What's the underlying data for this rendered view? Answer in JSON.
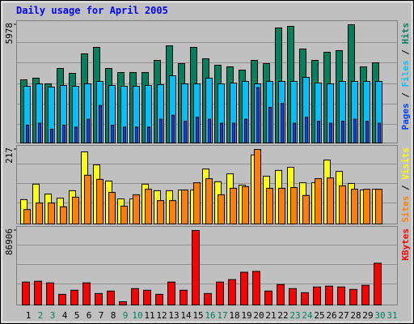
{
  "chart_data": [
    {
      "type": "bar",
      "title": "Daily usage for April 2005",
      "legend_separator": " / ",
      "ylim": [
        0,
        5978
      ],
      "yticks": [
        5978
      ],
      "series": [
        {
          "name": "Hits",
          "color": "#00805c",
          "values": [
            3194,
            3276,
            2989,
            3767,
            3521,
            4504,
            4831,
            3767,
            3562,
            3562,
            3562,
            4176,
            4913,
            4013,
            4831,
            4258,
            3931,
            3849,
            3685,
            4176,
            4013,
            5814,
            5896,
            4750,
            4176,
            4586,
            4668,
            5978,
            3849,
            4054,
            null
          ]
        },
        {
          "name": "Files",
          "color": "#00c0ff",
          "values": [
            2866,
            2989,
            2825,
            2907,
            2866,
            2989,
            3112,
            2907,
            2866,
            2866,
            2907,
            2948,
            3398,
            2989,
            2989,
            3276,
            2989,
            3030,
            3112,
            2989,
            3112,
            3112,
            3112,
            3317,
            3030,
            2989,
            3112,
            3112,
            3112,
            3112,
            null
          ]
        },
        {
          "name": "Pages",
          "color": "#0040ff",
          "values": [
            900,
            1000,
            700,
            900,
            800,
            1200,
            1900,
            900,
            800,
            800,
            800,
            1200,
            1400,
            1100,
            1300,
            1200,
            1000,
            1000,
            1200,
            2800,
            1800,
            2000,
            1000,
            1300,
            1100,
            1000,
            1100,
            1200,
            1100,
            1000,
            null
          ]
        }
      ]
    },
    {
      "type": "bar",
      "legend_separator": " / ",
      "ylim": [
        0,
        217
      ],
      "yticks": [
        217
      ],
      "series": [
        {
          "name": "Visits",
          "color": "#ffff00",
          "values": [
            71,
            116,
            87,
            75,
            97,
            210,
            172,
            125,
            73,
            73,
            116,
            97,
            97,
            99,
            99,
            160,
            123,
            146,
            113,
            201,
            139,
            156,
            165,
            120,
            120,
            186,
            153,
            118,
            99,
            101,
            null
          ]
        },
        {
          "name": "Sites",
          "color": "#ff8000",
          "values": [
            42,
            61,
            61,
            50,
            78,
            142,
            130,
            92,
            52,
            85,
            101,
            68,
            68,
            99,
            120,
            132,
            85,
            104,
            109,
            217,
            104,
            104,
            106,
            83,
            132,
            134,
            111,
            101,
            101,
            101,
            null
          ]
        }
      ]
    },
    {
      "type": "bar",
      "ylim": [
        0,
        86906
      ],
      "yticks": [
        86906
      ],
      "categories": [
        "1",
        "2",
        "3",
        "4",
        "5",
        "6",
        "7",
        "8",
        "9",
        "10",
        "11",
        "12",
        "13",
        "14",
        "15",
        "16",
        "17",
        "18",
        "19",
        "20",
        "21",
        "22",
        "23",
        "24",
        "25",
        "26",
        "27",
        "28",
        "29",
        "30",
        "31"
      ],
      "category_colors": [
        "#000000",
        "#00805c",
        "#00805c",
        "#000000",
        "#000000",
        "#000000",
        "#000000",
        "#000000",
        "#00805c",
        "#00805c",
        "#000000",
        "#000000",
        "#000000",
        "#000000",
        "#000000",
        "#00805c",
        "#00805c",
        "#000000",
        "#000000",
        "#000000",
        "#000000",
        "#000000",
        "#00805c",
        "#00805c",
        "#000000",
        "#000000",
        "#000000",
        "#000000",
        "#000000",
        "#00805c",
        "#00805c"
      ],
      "series": [
        {
          "name": "KBytes",
          "color": "#ff0000",
          "values": [
            26740,
            27695,
            25785,
            12415,
            17190,
            25785,
            13370,
            16235,
            3820,
            19100,
            17190,
            12415,
            26740,
            17190,
            86906,
            13370,
            26740,
            29605,
            38200,
            39155,
            16235,
            23875,
            19100,
            14325,
            21010,
            21965,
            21010,
            18145,
            22920,
            48705,
            null
          ]
        }
      ]
    }
  ]
}
